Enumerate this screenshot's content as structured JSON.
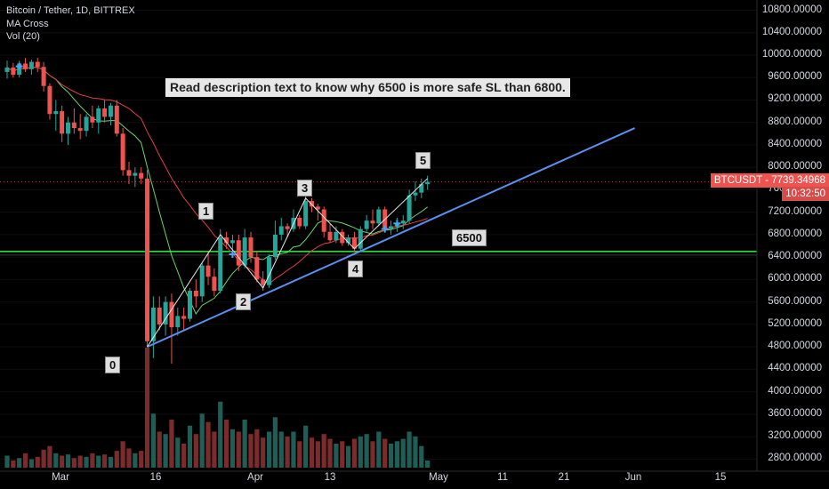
{
  "legend": {
    "symbol": "Bitcoin / Tether, 1D, BITTREX",
    "indicator1": "MA Cross",
    "indicator2": "Vol (20)"
  },
  "annotation_note": "Read description text to know why 6500 is more safe SL than 6800.",
  "wave_labels": [
    "0",
    "1",
    "2",
    "3",
    "4",
    "5"
  ],
  "level_label": "6500",
  "price_tag": {
    "symbol": "BTCUSDT",
    "price": "7739.34968",
    "countdown": "10:32:50"
  },
  "colors": {
    "up": "#26a69a",
    "down": "#ef5350",
    "level_line": "#22e036",
    "trendline": "#5b8ff0",
    "ma_fast": "#6ad46a",
    "ma_slow": "#e04040"
  },
  "chart_data": {
    "type": "candlestick",
    "y_axis_ticks": [
      "10800.00000",
      "10400.00000",
      "10000.00000",
      "9600.00000",
      "9200.00000",
      "8800.00000",
      "8400.00000",
      "8000.00000",
      "7600.00000",
      "7200.00000",
      "6800.00000",
      "6400.00000",
      "6000.00000",
      "5600.00000",
      "5200.00000",
      "4800.00000",
      "4400.00000",
      "4000.00000",
      "3600.00000",
      "3200.00000",
      "2800.00000"
    ],
    "x_axis_ticks": [
      "Mar",
      "16",
      "Apr",
      "13",
      "May",
      "11",
      "21",
      "Jun",
      "15"
    ],
    "ylim": [
      2600,
      11000
    ],
    "horizontal_level": 6500,
    "last_price": 7739.35,
    "candles": [
      {
        "o": 9700,
        "h": 9900,
        "l": 9580,
        "c": 9780
      },
      {
        "o": 9780,
        "h": 9860,
        "l": 9600,
        "c": 9650
      },
      {
        "o": 9650,
        "h": 9900,
        "l": 9600,
        "c": 9850
      },
      {
        "o": 9850,
        "h": 9950,
        "l": 9700,
        "c": 9750
      },
      {
        "o": 9750,
        "h": 9920,
        "l": 9650,
        "c": 9880
      },
      {
        "o": 9880,
        "h": 9950,
        "l": 9700,
        "c": 9790
      },
      {
        "o": 9790,
        "h": 9880,
        "l": 9350,
        "c": 9450
      },
      {
        "o": 9450,
        "h": 9500,
        "l": 8850,
        "c": 8950
      },
      {
        "o": 8950,
        "h": 9200,
        "l": 8650,
        "c": 9000
      },
      {
        "o": 9000,
        "h": 9100,
        "l": 8450,
        "c": 8600
      },
      {
        "o": 8600,
        "h": 8900,
        "l": 8400,
        "c": 8800
      },
      {
        "o": 8800,
        "h": 9050,
        "l": 8600,
        "c": 8700
      },
      {
        "o": 8700,
        "h": 8950,
        "l": 8500,
        "c": 8650
      },
      {
        "o": 8650,
        "h": 8950,
        "l": 8550,
        "c": 8900
      },
      {
        "o": 8900,
        "h": 9100,
        "l": 8700,
        "c": 8800
      },
      {
        "o": 8800,
        "h": 9100,
        "l": 8600,
        "c": 9050
      },
      {
        "o": 9050,
        "h": 9200,
        "l": 8800,
        "c": 8900
      },
      {
        "o": 8900,
        "h": 9150,
        "l": 8750,
        "c": 9100
      },
      {
        "o": 9100,
        "h": 9200,
        "l": 8550,
        "c": 8600
      },
      {
        "o": 8600,
        "h": 8700,
        "l": 7850,
        "c": 7950
      },
      {
        "o": 7950,
        "h": 8100,
        "l": 7700,
        "c": 7850
      },
      {
        "o": 7850,
        "h": 8000,
        "l": 7650,
        "c": 7900
      },
      {
        "o": 7900,
        "h": 8000,
        "l": 7700,
        "c": 7800
      },
      {
        "o": 7800,
        "h": 7950,
        "l": 4800,
        "c": 4900
      },
      {
        "o": 4900,
        "h": 5700,
        "l": 4600,
        "c": 5500
      },
      {
        "o": 5500,
        "h": 5700,
        "l": 5100,
        "c": 5200
      },
      {
        "o": 5200,
        "h": 5700,
        "l": 5000,
        "c": 5600
      },
      {
        "o": 5600,
        "h": 5750,
        "l": 4500,
        "c": 5150
      },
      {
        "o": 5150,
        "h": 5500,
        "l": 5000,
        "c": 5350
      },
      {
        "o": 5350,
        "h": 5500,
        "l": 5100,
        "c": 5300
      },
      {
        "o": 5300,
        "h": 5850,
        "l": 5250,
        "c": 5800
      },
      {
        "o": 5800,
        "h": 6000,
        "l": 5500,
        "c": 5700
      },
      {
        "o": 5700,
        "h": 6300,
        "l": 5600,
        "c": 6250
      },
      {
        "o": 6250,
        "h": 6500,
        "l": 5900,
        "c": 6050
      },
      {
        "o": 6050,
        "h": 6200,
        "l": 5700,
        "c": 5800
      },
      {
        "o": 5800,
        "h": 6900,
        "l": 5750,
        "c": 6750
      },
      {
        "o": 6750,
        "h": 6850,
        "l": 6550,
        "c": 6650
      },
      {
        "o": 6650,
        "h": 6800,
        "l": 6450,
        "c": 6700
      },
      {
        "o": 6700,
        "h": 6800,
        "l": 6150,
        "c": 6250
      },
      {
        "o": 6250,
        "h": 6900,
        "l": 6200,
        "c": 6750
      },
      {
        "o": 6750,
        "h": 6850,
        "l": 6300,
        "c": 6400
      },
      {
        "o": 6400,
        "h": 6500,
        "l": 5950,
        "c": 6000
      },
      {
        "o": 6000,
        "h": 6150,
        "l": 5800,
        "c": 5900
      },
      {
        "o": 5900,
        "h": 6450,
        "l": 5850,
        "c": 6400
      },
      {
        "o": 6400,
        "h": 7050,
        "l": 6350,
        "c": 6800
      },
      {
        "o": 6800,
        "h": 7100,
        "l": 6700,
        "c": 6950
      },
      {
        "o": 6950,
        "h": 7000,
        "l": 6750,
        "c": 6900
      },
      {
        "o": 6900,
        "h": 7250,
        "l": 6850,
        "c": 7100
      },
      {
        "o": 7100,
        "h": 7150,
        "l": 6900,
        "c": 6950
      },
      {
        "o": 6950,
        "h": 7500,
        "l": 6900,
        "c": 7400
      },
      {
        "o": 7400,
        "h": 7450,
        "l": 7200,
        "c": 7300
      },
      {
        "o": 7300,
        "h": 7350,
        "l": 7050,
        "c": 7250
      },
      {
        "o": 7250,
        "h": 7300,
        "l": 6750,
        "c": 6850
      },
      {
        "o": 6850,
        "h": 7000,
        "l": 6650,
        "c": 6700
      },
      {
        "o": 6700,
        "h": 6950,
        "l": 6650,
        "c": 6850
      },
      {
        "o": 6850,
        "h": 6900,
        "l": 6600,
        "c": 6650
      },
      {
        "o": 6650,
        "h": 6800,
        "l": 6600,
        "c": 6750
      },
      {
        "o": 6750,
        "h": 6850,
        "l": 6500,
        "c": 6550
      },
      {
        "o": 6550,
        "h": 6950,
        "l": 6500,
        "c": 6900
      },
      {
        "o": 6900,
        "h": 7150,
        "l": 6850,
        "c": 7050
      },
      {
        "o": 7050,
        "h": 7250,
        "l": 6900,
        "c": 7000
      },
      {
        "o": 7000,
        "h": 7300,
        "l": 6950,
        "c": 7250
      },
      {
        "o": 7250,
        "h": 7300,
        "l": 6850,
        "c": 6900
      },
      {
        "o": 6900,
        "h": 7050,
        "l": 6800,
        "c": 6950
      },
      {
        "o": 6950,
        "h": 7100,
        "l": 6850,
        "c": 7000
      },
      {
        "o": 7000,
        "h": 7150,
        "l": 6900,
        "c": 7050
      },
      {
        "o": 7050,
        "h": 7600,
        "l": 7000,
        "c": 7500
      },
      {
        "o": 7500,
        "h": 7750,
        "l": 7400,
        "c": 7550
      },
      {
        "o": 7550,
        "h": 7800,
        "l": 7450,
        "c": 7700
      },
      {
        "o": 7700,
        "h": 7850,
        "l": 7600,
        "c": 7740
      }
    ],
    "volume_relative": [
      0.1,
      0.06,
      0.08,
      0.12,
      0.07,
      0.09,
      0.15,
      0.18,
      0.12,
      0.1,
      0.11,
      0.08,
      0.1,
      0.09,
      0.12,
      0.1,
      0.11,
      0.09,
      0.14,
      0.22,
      0.16,
      0.12,
      0.14,
      1.0,
      0.45,
      0.3,
      0.28,
      0.4,
      0.25,
      0.2,
      0.35,
      0.28,
      0.45,
      0.38,
      0.3,
      0.55,
      0.4,
      0.32,
      0.3,
      0.4,
      0.28,
      0.32,
      0.25,
      0.3,
      0.42,
      0.3,
      0.26,
      0.3,
      0.22,
      0.35,
      0.25,
      0.22,
      0.28,
      0.24,
      0.2,
      0.22,
      0.18,
      0.24,
      0.26,
      0.28,
      0.22,
      0.3,
      0.24,
      0.2,
      0.22,
      0.24,
      0.3,
      0.26,
      0.18,
      0.06
    ],
    "trendline": {
      "from": {
        "i": 23,
        "p": 4800
      },
      "to": {
        "i": 103,
        "p": 8700
      }
    },
    "wave_points": [
      {
        "i": 23,
        "p": 4800
      },
      {
        "i": 35,
        "p": 6800
      },
      {
        "i": 42,
        "p": 5850
      },
      {
        "i": 49,
        "p": 7450
      },
      {
        "i": 57,
        "p": 6550
      },
      {
        "i": 69,
        "p": 7800
      }
    ]
  }
}
